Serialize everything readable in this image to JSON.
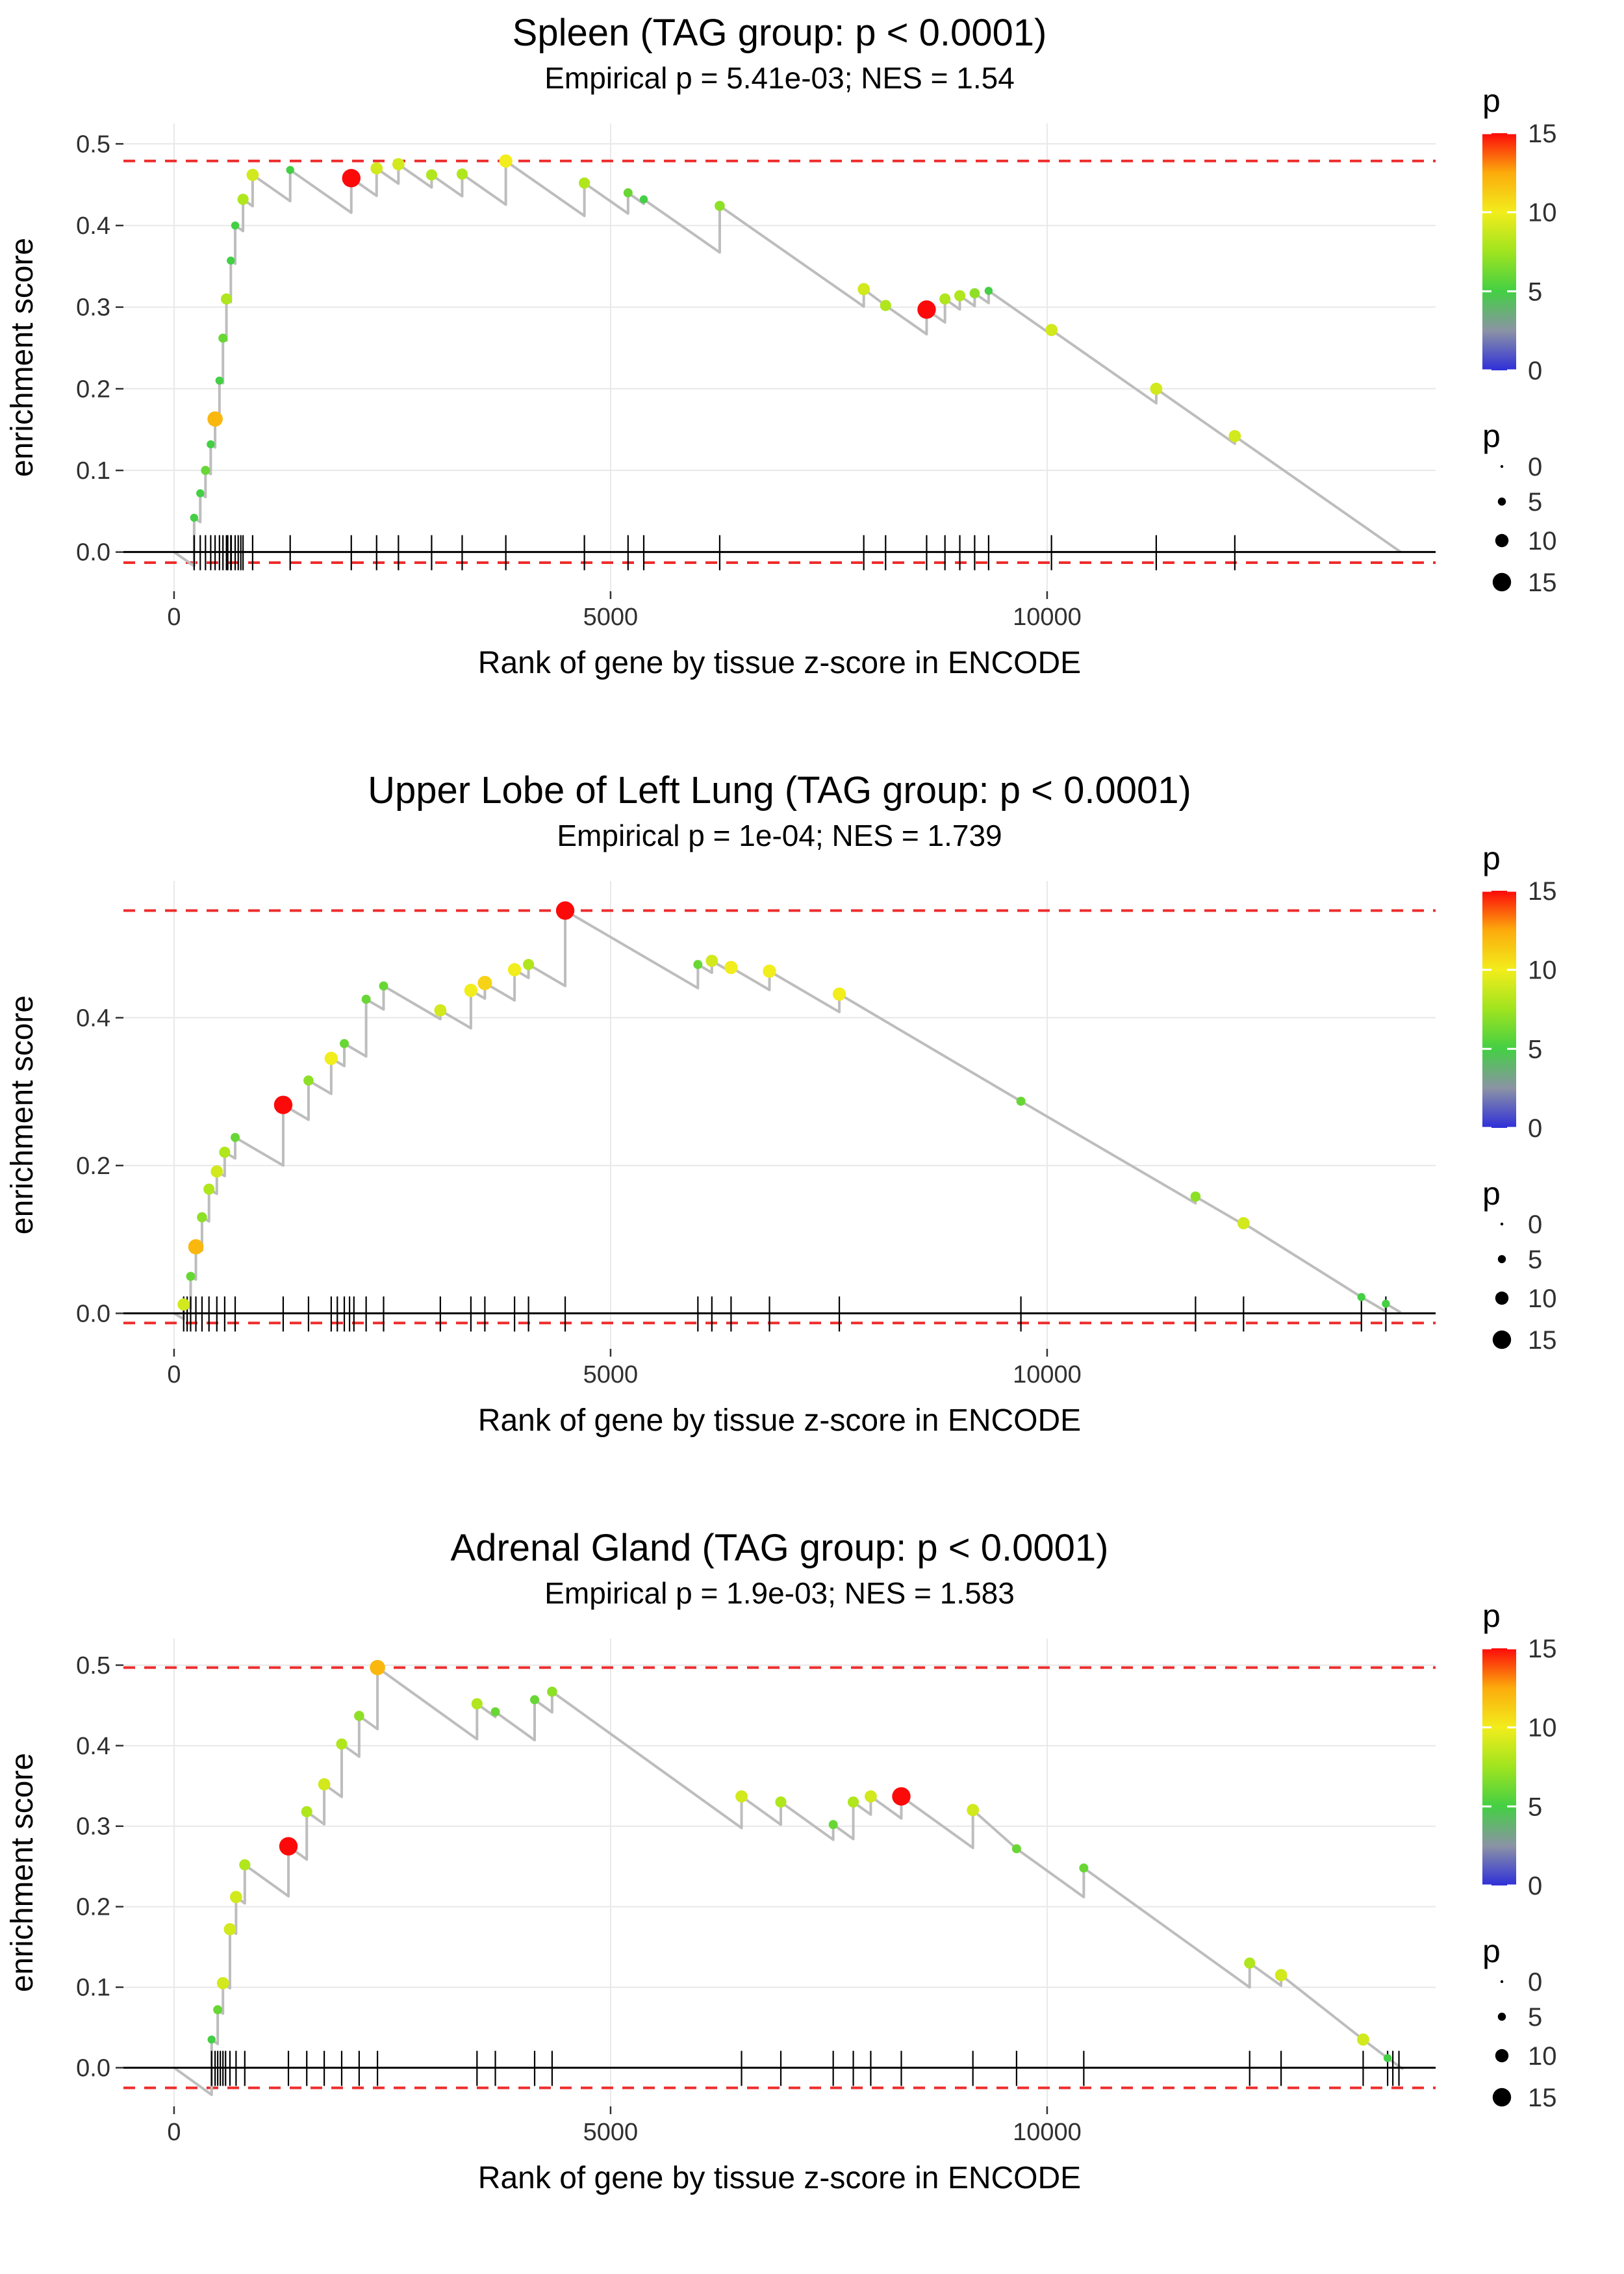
{
  "figure": {
    "background": "#ffffff",
    "panel": {
      "grid_color": "#e8e8e8",
      "curve_color": "#bdbdbd",
      "dashed_line_color": "#ee2c2c",
      "zero_line_color": "#000000",
      "rug_color": "#000000"
    }
  },
  "legends": {
    "color": {
      "title": "p",
      "range": [
        0,
        15
      ],
      "ticks": [
        0,
        5,
        10,
        15
      ],
      "stops": [
        [
          0,
          "#2f2fd9"
        ],
        [
          2.5,
          "#8b93a5"
        ],
        [
          5,
          "#44cf44"
        ],
        [
          7.5,
          "#9fe41f"
        ],
        [
          10,
          "#f2ed1c"
        ],
        [
          12.5,
          "#fcab0c"
        ],
        [
          15,
          "#fc0a0a"
        ]
      ]
    },
    "size": {
      "title": "p",
      "ticks": [
        0,
        5,
        10,
        15
      ]
    }
  },
  "chart_data": [
    {
      "type": "line",
      "title": "Spleen (TAG group: p < 0.0001)",
      "subtitle": "Empirical p = 5.41e-03; NES = 1.54",
      "xlabel": "Rank of gene by tissue z-score in ENCODE",
      "ylabel": "enrichment score",
      "x_ticks": [
        0,
        5000,
        10000
      ],
      "y_ticks": [
        0,
        0.1,
        0.2,
        0.3,
        0.4,
        0.5
      ],
      "xlim": [
        -580,
        14450
      ],
      "ylim": [
        -0.048,
        0.525
      ],
      "hline_top": 0.479,
      "hline_bottom": -0.013,
      "x_end": 14050,
      "slope": 7.47e-05,
      "points": [
        [
          230,
          0.042,
          5
        ],
        [
          300,
          0.072,
          5
        ],
        [
          360,
          0.1,
          6
        ],
        [
          420,
          0.132,
          5
        ],
        [
          470,
          0.163,
          12
        ],
        [
          520,
          0.21,
          5
        ],
        [
          560,
          0.262,
          6
        ],
        [
          600,
          0.31,
          8
        ],
        [
          650,
          0.357,
          5
        ],
        [
          700,
          0.4,
          5
        ],
        [
          790,
          0.432,
          8
        ],
        [
          900,
          0.462,
          9
        ],
        [
          1330,
          0.468,
          5
        ],
        [
          2030,
          0.458,
          15
        ],
        [
          2320,
          0.47,
          9
        ],
        [
          2570,
          0.475,
          9
        ],
        [
          2950,
          0.462,
          8
        ],
        [
          3300,
          0.463,
          8
        ],
        [
          3800,
          0.479,
          10
        ],
        [
          4700,
          0.452,
          8
        ],
        [
          5200,
          0.44,
          6
        ],
        [
          5380,
          0.432,
          5
        ],
        [
          6250,
          0.424,
          7
        ],
        [
          7900,
          0.322,
          9
        ],
        [
          8150,
          0.302,
          8
        ],
        [
          8620,
          0.297,
          15
        ],
        [
          8830,
          0.31,
          8
        ],
        [
          9000,
          0.314,
          8
        ],
        [
          9170,
          0.317,
          7
        ],
        [
          9330,
          0.32,
          5
        ],
        [
          10050,
          0.272,
          9
        ],
        [
          11250,
          0.2,
          9
        ],
        [
          12150,
          0.142,
          9
        ]
      ],
      "rug_extra": [
        615,
        655,
        735,
        765
      ]
    },
    {
      "type": "line",
      "title": "Upper Lobe of Left Lung (TAG group: p < 0.0001)",
      "subtitle": "Empirical p = 1e-04; NES = 1.739",
      "xlabel": "Rank of gene by tissue z-score in ENCODE",
      "ylabel": "enrichment score",
      "x_ticks": [
        0,
        5000,
        10000
      ],
      "y_ticks": [
        0,
        0.2,
        0.4
      ],
      "xlim": [
        -580,
        14450
      ],
      "ylim": [
        -0.048,
        0.585
      ],
      "hline_top": 0.545,
      "hline_bottom": -0.013,
      "x_end": 14050,
      "slope": 6.9e-05,
      "points": [
        [
          110,
          0.012,
          9
        ],
        [
          190,
          0.05,
          6
        ],
        [
          250,
          0.09,
          12
        ],
        [
          320,
          0.13,
          7
        ],
        [
          400,
          0.168,
          8
        ],
        [
          490,
          0.192,
          9
        ],
        [
          580,
          0.218,
          8
        ],
        [
          700,
          0.238,
          6
        ],
        [
          1250,
          0.282,
          15
        ],
        [
          1540,
          0.315,
          7
        ],
        [
          1800,
          0.345,
          10
        ],
        [
          1950,
          0.365,
          6
        ],
        [
          2200,
          0.425,
          6
        ],
        [
          2400,
          0.443,
          6
        ],
        [
          3050,
          0.41,
          9
        ],
        [
          3400,
          0.437,
          10
        ],
        [
          3560,
          0.447,
          11
        ],
        [
          3900,
          0.465,
          10
        ],
        [
          4060,
          0.472,
          8
        ],
        [
          4480,
          0.545,
          15
        ],
        [
          6000,
          0.472,
          6
        ],
        [
          6160,
          0.477,
          9
        ],
        [
          6380,
          0.468,
          10
        ],
        [
          6820,
          0.463,
          10
        ],
        [
          7620,
          0.432,
          10
        ],
        [
          9700,
          0.287,
          6
        ],
        [
          11700,
          0.158,
          7
        ],
        [
          12250,
          0.122,
          9
        ],
        [
          13600,
          0.022,
          5
        ],
        [
          13880,
          0.013,
          5
        ]
      ],
      "rug_extra": [
        150,
        1870,
        2010,
        2060
      ]
    },
    {
      "type": "line",
      "title": "Adrenal Gland (TAG group: p < 0.0001)",
      "subtitle": "Empirical p = 1.9e-03; NES = 1.583",
      "xlabel": "Rank of gene by tissue z-score in ENCODE",
      "ylabel": "enrichment score",
      "x_ticks": [
        0,
        5000,
        10000
      ],
      "y_ticks": [
        0,
        0.1,
        0.2,
        0.3,
        0.4,
        0.5
      ],
      "xlim": [
        -580,
        14450
      ],
      "ylim": [
        -0.048,
        0.533
      ],
      "hline_top": 0.497,
      "hline_bottom": -0.025,
      "x_end": 14080,
      "slope": 7.8e-05,
      "points": [
        [
          430,
          0.035,
          5
        ],
        [
          500,
          0.072,
          6
        ],
        [
          560,
          0.105,
          9
        ],
        [
          640,
          0.172,
          9
        ],
        [
          710,
          0.212,
          9
        ],
        [
          810,
          0.252,
          8
        ],
        [
          1310,
          0.275,
          15
        ],
        [
          1520,
          0.318,
          8
        ],
        [
          1720,
          0.352,
          9
        ],
        [
          1920,
          0.402,
          8
        ],
        [
          2120,
          0.437,
          7
        ],
        [
          2330,
          0.497,
          12
        ],
        [
          3470,
          0.452,
          8
        ],
        [
          3680,
          0.442,
          6
        ],
        [
          4130,
          0.457,
          6
        ],
        [
          4330,
          0.467,
          7
        ],
        [
          6500,
          0.337,
          9
        ],
        [
          6950,
          0.33,
          8
        ],
        [
          7550,
          0.302,
          6
        ],
        [
          7780,
          0.33,
          8
        ],
        [
          7980,
          0.337,
          9
        ],
        [
          8330,
          0.337,
          15
        ],
        [
          9150,
          0.32,
          9
        ],
        [
          9650,
          0.272,
          6
        ],
        [
          10420,
          0.248,
          6
        ],
        [
          12320,
          0.13,
          8
        ],
        [
          12680,
          0.115,
          9
        ],
        [
          13620,
          0.035,
          9
        ],
        [
          13900,
          0.012,
          5
        ]
      ],
      "rug_extra": [
        470,
        530,
        590,
        13960,
        14030
      ]
    }
  ]
}
